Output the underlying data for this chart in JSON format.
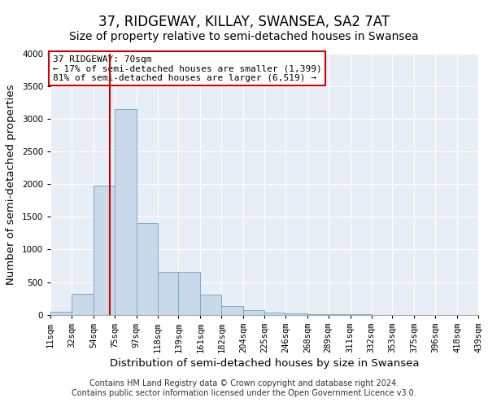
{
  "title": "37, RIDGEWAY, KILLAY, SWANSEA, SA2 7AT",
  "subtitle": "Size of property relative to semi-detached houses in Swansea",
  "xlabel": "Distribution of semi-detached houses by size in Swansea",
  "ylabel": "Number of semi-detached properties",
  "bin_edges": [
    11,
    32,
    54,
    75,
    97,
    118,
    139,
    161,
    182,
    204,
    225,
    246,
    268,
    289,
    311,
    332,
    353,
    375,
    396,
    418,
    439
  ],
  "bar_heights": [
    50,
    320,
    1975,
    3150,
    1400,
    650,
    650,
    310,
    130,
    70,
    30,
    20,
    5,
    3,
    2,
    1,
    1,
    1,
    1,
    1
  ],
  "bar_color": "#c9d9ea",
  "bar_edgecolor": "#7aabcf",
  "property_size": 70,
  "vline_color": "#cc0000",
  "annotation_title": "37 RIDGEWAY: 70sqm",
  "annotation_line1": "← 17% of semi-detached houses are smaller (1,399)",
  "annotation_line2": "81% of semi-detached houses are larger (6,519) →",
  "annotation_box_edgecolor": "#cc0000",
  "ylim": [
    0,
    4000
  ],
  "yticks": [
    0,
    500,
    1000,
    1500,
    2000,
    2500,
    3000,
    3500,
    4000
  ],
  "xtick_labels": [
    "11sqm",
    "32sqm",
    "54sqm",
    "75sqm",
    "97sqm",
    "118sqm",
    "139sqm",
    "161sqm",
    "182sqm",
    "204sqm",
    "225sqm",
    "246sqm",
    "268sqm",
    "289sqm",
    "311sqm",
    "332sqm",
    "353sqm",
    "375sqm",
    "396sqm",
    "418sqm",
    "439sqm"
  ],
  "footer1": "Contains HM Land Registry data © Crown copyright and database right 2024.",
  "footer2": "Contains public sector information licensed under the Open Government Licence v3.0.",
  "bg_color": "#ffffff",
  "plot_bg_color": "#e8eef5",
  "title_fontsize": 12,
  "subtitle_fontsize": 10,
  "axis_label_fontsize": 9.5,
  "tick_fontsize": 7.5,
  "footer_fontsize": 7
}
